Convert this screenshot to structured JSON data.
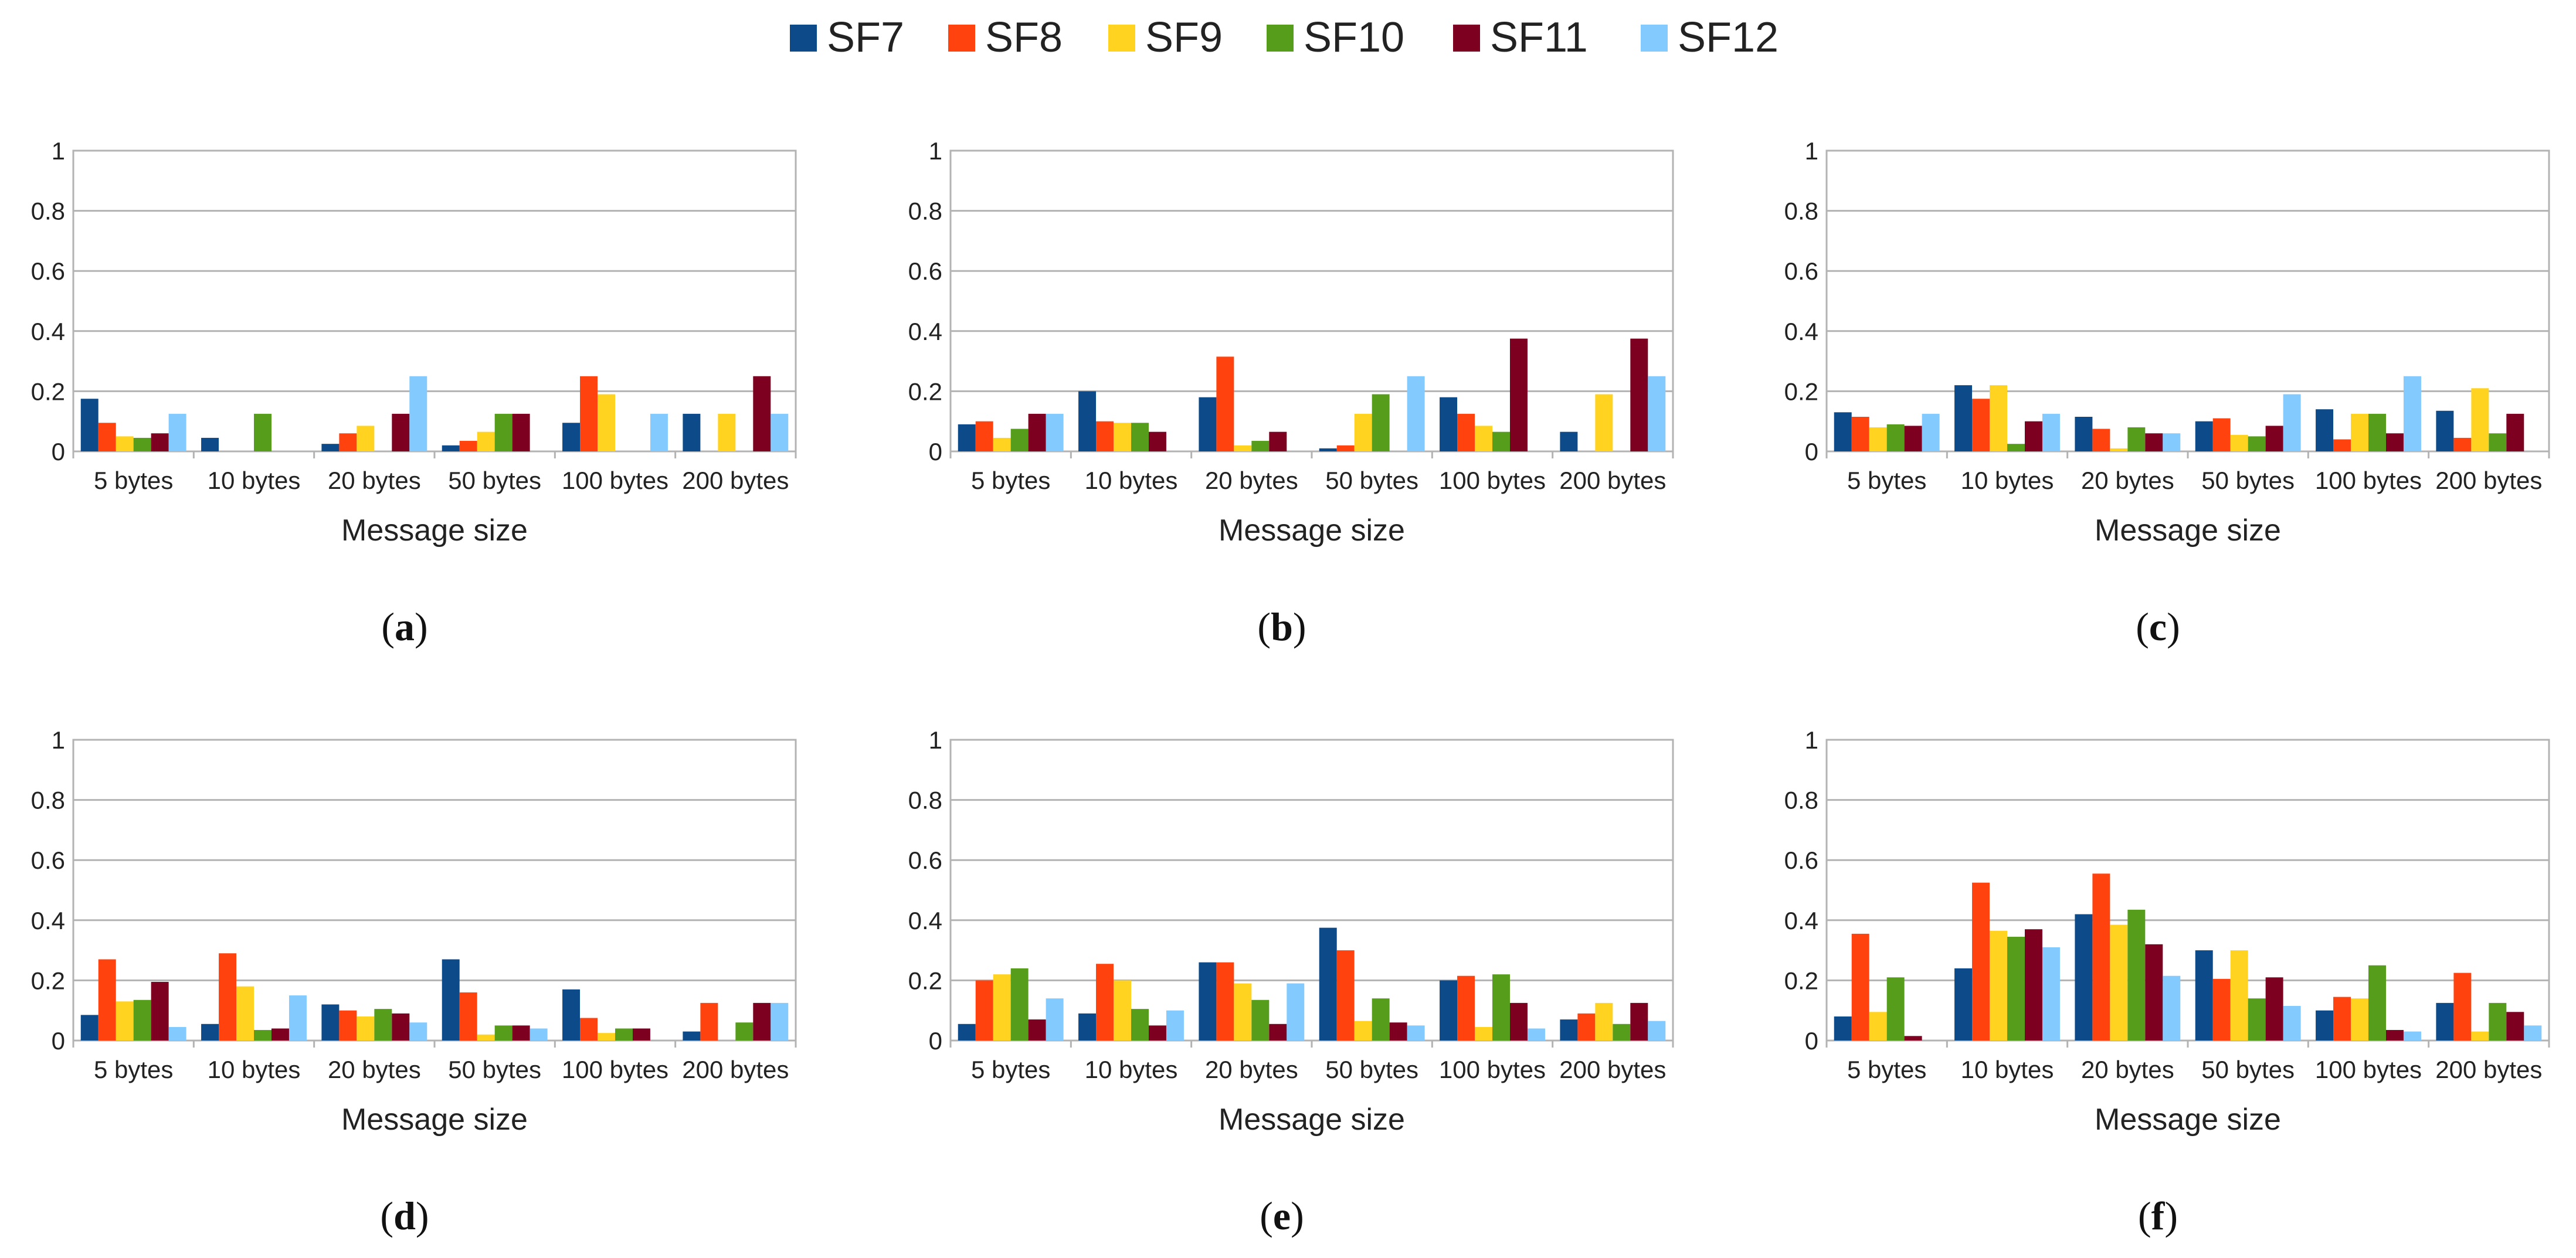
{
  "chart_data": {
    "type": "bar",
    "legend": {
      "position": "top-center",
      "entries": [
        {
          "name": "SF7",
          "color": "#0d4a8a"
        },
        {
          "name": "SF8",
          "color": "#ff420e"
        },
        {
          "name": "SF9",
          "color": "#ffd320"
        },
        {
          "name": "SF10",
          "color": "#579d1c"
        },
        {
          "name": "SF11",
          "color": "#7e0021"
        },
        {
          "name": "SF12",
          "color": "#83caff"
        }
      ]
    },
    "panels": [
      {
        "caption": "a",
        "xlabel": "Message size",
        "categories": [
          "5 bytes",
          "10 bytes",
          "20 bytes",
          "50 bytes",
          "100 bytes",
          "200 bytes"
        ],
        "ylim": [
          0,
          1
        ],
        "yticks": [
          "0",
          "0.2",
          "0.4",
          "0.6",
          "0.8",
          "1"
        ],
        "series": [
          {
            "name": "SF7",
            "values": [
              0.175,
              0.045,
              0.025,
              0.02,
              0.095,
              0.125
            ]
          },
          {
            "name": "SF8",
            "values": [
              0.095,
              0,
              0.06,
              0.035,
              0.25,
              0
            ]
          },
          {
            "name": "SF9",
            "values": [
              0.05,
              0,
              0.085,
              0.065,
              0.19,
              0.125
            ]
          },
          {
            "name": "SF10",
            "values": [
              0.045,
              0.125,
              0,
              0.125,
              0,
              0
            ]
          },
          {
            "name": "SF11",
            "values": [
              0.06,
              0,
              0.125,
              0.125,
              0,
              0.25
            ]
          },
          {
            "name": "SF12",
            "values": [
              0.125,
              0,
              0.25,
              0,
              0.125,
              0.125
            ]
          }
        ]
      },
      {
        "caption": "b",
        "xlabel": "Message size",
        "categories": [
          "5 bytes",
          "10 bytes",
          "20 bytes",
          "50 bytes",
          "100 bytes",
          "200 bytes"
        ],
        "ylim": [
          0,
          1
        ],
        "yticks": [
          "0",
          "0.2",
          "0.4",
          "0.6",
          "0.8",
          "1"
        ],
        "series": [
          {
            "name": "SF7",
            "values": [
              0.09,
              0.2,
              0.18,
              0.01,
              0.18,
              0.065
            ]
          },
          {
            "name": "SF8",
            "values": [
              0.1,
              0.1,
              0.315,
              0.02,
              0.125,
              0
            ]
          },
          {
            "name": "SF9",
            "values": [
              0.045,
              0.095,
              0.02,
              0.125,
              0.085,
              0.19
            ]
          },
          {
            "name": "SF10",
            "values": [
              0.075,
              0.095,
              0.035,
              0.19,
              0.065,
              0
            ]
          },
          {
            "name": "SF11",
            "values": [
              0.125,
              0.065,
              0.065,
              0,
              0.375,
              0.375
            ]
          },
          {
            "name": "SF12",
            "values": [
              0.125,
              0,
              0,
              0.25,
              0,
              0.25
            ]
          }
        ]
      },
      {
        "caption": "c",
        "xlabel": "Message size",
        "categories": [
          "5 bytes",
          "10 bytes",
          "20 bytes",
          "50 bytes",
          "100 bytes",
          "200 bytes"
        ],
        "ylim": [
          0,
          1
        ],
        "yticks": [
          "0",
          "0.2",
          "0.4",
          "0.6",
          "0.8",
          "1"
        ],
        "series": [
          {
            "name": "SF7",
            "values": [
              0.13,
              0.22,
              0.115,
              0.1,
              0.14,
              0.135
            ]
          },
          {
            "name": "SF8",
            "values": [
              0.115,
              0.175,
              0.075,
              0.11,
              0.04,
              0.045
            ]
          },
          {
            "name": "SF9",
            "values": [
              0.08,
              0.22,
              0.01,
              0.055,
              0.125,
              0.21
            ]
          },
          {
            "name": "SF10",
            "values": [
              0.09,
              0.025,
              0.08,
              0.05,
              0.125,
              0.06
            ]
          },
          {
            "name": "SF11",
            "values": [
              0.085,
              0.1,
              0.06,
              0.085,
              0.06,
              0.125
            ]
          },
          {
            "name": "SF12",
            "values": [
              0.125,
              0.125,
              0.06,
              0.19,
              0.25,
              0
            ]
          }
        ]
      },
      {
        "caption": "d",
        "xlabel": "Message size",
        "categories": [
          "5 bytes",
          "10 bytes",
          "20 bytes",
          "50 bytes",
          "100 bytes",
          "200 bytes"
        ],
        "ylim": [
          0,
          1
        ],
        "yticks": [
          "0",
          "0.2",
          "0.4",
          "0.6",
          "0.8",
          "1"
        ],
        "series": [
          {
            "name": "SF7",
            "values": [
              0.085,
              0.055,
              0.12,
              0.27,
              0.17,
              0.03
            ]
          },
          {
            "name": "SF8",
            "values": [
              0.27,
              0.29,
              0.1,
              0.16,
              0.075,
              0.125
            ]
          },
          {
            "name": "SF9",
            "values": [
              0.13,
              0.18,
              0.08,
              0.02,
              0.025,
              0
            ]
          },
          {
            "name": "SF10",
            "values": [
              0.135,
              0.035,
              0.105,
              0.05,
              0.04,
              0.06
            ]
          },
          {
            "name": "SF11",
            "values": [
              0.195,
              0.04,
              0.09,
              0.05,
              0.04,
              0.125
            ]
          },
          {
            "name": "SF12",
            "values": [
              0.045,
              0.15,
              0.06,
              0.04,
              0,
              0.125
            ]
          }
        ]
      },
      {
        "caption": "e",
        "xlabel": "Message size",
        "categories": [
          "5 bytes",
          "10 bytes",
          "20 bytes",
          "50 bytes",
          "100 bytes",
          "200 bytes"
        ],
        "ylim": [
          0,
          1
        ],
        "yticks": [
          "0",
          "0.2",
          "0.4",
          "0.6",
          "0.8",
          "1"
        ],
        "series": [
          {
            "name": "SF7",
            "values": [
              0.055,
              0.09,
              0.26,
              0.375,
              0.2,
              0.07
            ]
          },
          {
            "name": "SF8",
            "values": [
              0.2,
              0.255,
              0.26,
              0.3,
              0.215,
              0.09
            ]
          },
          {
            "name": "SF9",
            "values": [
              0.22,
              0.2,
              0.19,
              0.065,
              0.045,
              0.125
            ]
          },
          {
            "name": "SF10",
            "values": [
              0.24,
              0.105,
              0.135,
              0.14,
              0.22,
              0.055
            ]
          },
          {
            "name": "SF11",
            "values": [
              0.07,
              0.05,
              0.055,
              0.06,
              0.125,
              0.125
            ]
          },
          {
            "name": "SF12",
            "values": [
              0.14,
              0.1,
              0.19,
              0.05,
              0.04,
              0.065
            ]
          }
        ]
      },
      {
        "caption": "f",
        "xlabel": "Message size",
        "categories": [
          "5 bytes",
          "10 bytes",
          "20 bytes",
          "50 bytes",
          "100 bytes",
          "200 bytes"
        ],
        "ylim": [
          0,
          1
        ],
        "yticks": [
          "0",
          "0.2",
          "0.4",
          "0.6",
          "0.8",
          "1"
        ],
        "series": [
          {
            "name": "SF7",
            "values": [
              0.08,
              0.24,
              0.42,
              0.3,
              0.1,
              0.125
            ]
          },
          {
            "name": "SF8",
            "values": [
              0.355,
              0.525,
              0.555,
              0.205,
              0.145,
              0.225
            ]
          },
          {
            "name": "SF9",
            "values": [
              0.095,
              0.365,
              0.385,
              0.3,
              0.14,
              0.03
            ]
          },
          {
            "name": "SF10",
            "values": [
              0.21,
              0.345,
              0.435,
              0.14,
              0.25,
              0.125
            ]
          },
          {
            "name": "SF11",
            "values": [
              0.015,
              0.37,
              0.32,
              0.21,
              0.035,
              0.095
            ]
          },
          {
            "name": "SF12",
            "values": [
              0,
              0.31,
              0.215,
              0.115,
              0.03,
              0.05
            ]
          }
        ]
      }
    ]
  }
}
